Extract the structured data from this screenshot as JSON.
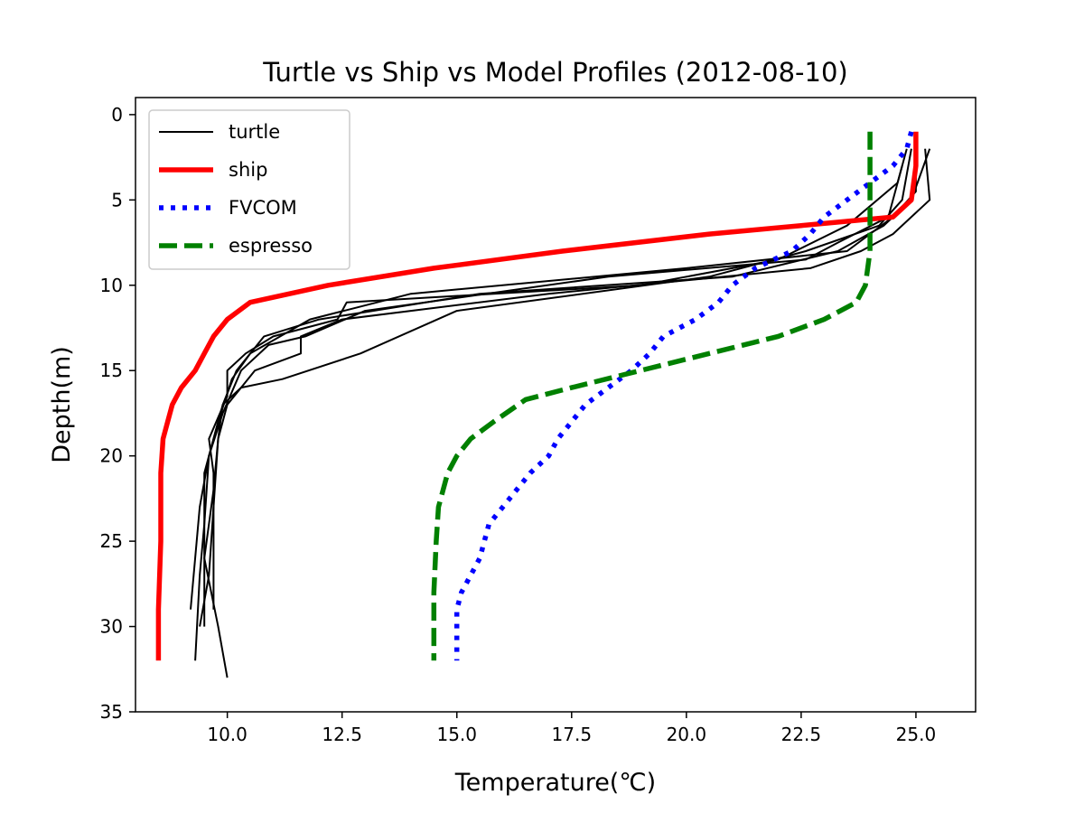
{
  "chart_data": {
    "type": "line",
    "title": "Turtle vs Ship vs Model Profiles (2012-08-10)",
    "xlabel": "Temperature(℃)",
    "ylabel": "Depth(m)",
    "xlim": [
      8.0,
      26.3
    ],
    "ylim": [
      35,
      -1
    ],
    "y_inverted": true,
    "grid": false,
    "legend_position": "upper left",
    "xticks": [
      10.0,
      12.5,
      15.0,
      17.5,
      20.0,
      22.5,
      25.0
    ],
    "xtick_labels": [
      "10.0",
      "12.5",
      "15.0",
      "17.5",
      "20.0",
      "22.5",
      "25.0"
    ],
    "yticks": [
      0,
      5,
      10,
      15,
      20,
      25,
      30,
      35
    ],
    "ytick_labels": [
      "0",
      "5",
      "10",
      "15",
      "20",
      "25",
      "30",
      "35"
    ],
    "legend": [
      {
        "label": "turtle",
        "color": "#000000",
        "style": "solid-thin"
      },
      {
        "label": "ship",
        "color": "#ff0000",
        "style": "solid-thick"
      },
      {
        "label": "FVCOM",
        "color": "#0000ff",
        "style": "dotted"
      },
      {
        "label": "espresso",
        "color": "#008000",
        "style": "dashed"
      }
    ],
    "series": [
      {
        "name": "turtle",
        "color": "#000000",
        "points": [
          [
            24.8,
            2
          ],
          [
            24.6,
            4
          ],
          [
            23.5,
            6.5
          ],
          [
            22,
            8.5
          ],
          [
            19,
            10
          ],
          [
            12.6,
            11
          ],
          [
            12.4,
            12
          ],
          [
            11,
            13
          ],
          [
            10.4,
            14
          ],
          [
            10,
            15
          ],
          [
            10,
            16.5
          ],
          [
            9.6,
            19
          ],
          [
            9.7,
            21
          ],
          [
            9.7,
            25
          ],
          [
            9.7,
            29
          ]
        ]
      },
      {
        "name": "turtle",
        "color": "#000000",
        "points": [
          [
            25.3,
            2
          ],
          [
            24.9,
            5
          ],
          [
            24.3,
            6.5
          ],
          [
            23.3,
            8
          ],
          [
            21,
            9.5
          ],
          [
            15.5,
            10.5
          ],
          [
            12,
            12
          ],
          [
            10.8,
            13
          ],
          [
            10.2,
            15
          ],
          [
            9.9,
            17
          ],
          [
            9.6,
            20
          ],
          [
            9.5,
            24
          ],
          [
            9.4,
            27
          ],
          [
            9.3,
            32
          ]
        ]
      },
      {
        "name": "turtle",
        "color": "#000000",
        "points": [
          [
            25.0,
            3
          ],
          [
            25.0,
            4.5
          ],
          [
            24.5,
            6
          ],
          [
            23.5,
            8
          ],
          [
            20,
            9
          ],
          [
            14,
            10.5
          ],
          [
            11.8,
            12
          ],
          [
            10.5,
            14
          ],
          [
            10.1,
            15.5
          ],
          [
            9.8,
            18
          ],
          [
            9.5,
            21
          ],
          [
            9.5,
            26
          ],
          [
            9.8,
            30
          ],
          [
            10.0,
            33
          ]
        ]
      },
      {
        "name": "turtle",
        "color": "#000000",
        "points": [
          [
            25.2,
            2
          ],
          [
            25.3,
            5
          ],
          [
            24.5,
            7
          ],
          [
            23.8,
            8
          ],
          [
            22.7,
            9
          ],
          [
            17,
            10.5
          ],
          [
            12.5,
            12
          ],
          [
            11.6,
            13
          ],
          [
            11.6,
            14
          ],
          [
            10.6,
            15
          ],
          [
            10.3,
            16
          ],
          [
            10.0,
            17
          ],
          [
            9.8,
            19
          ],
          [
            9.7,
            23
          ],
          [
            9.6,
            27
          ],
          [
            9.4,
            30
          ]
        ]
      },
      {
        "name": "turtle",
        "color": "#000000",
        "points": [
          [
            24.7,
            3
          ],
          [
            24.4,
            6
          ],
          [
            23.3,
            7.5
          ],
          [
            22.6,
            8.5
          ],
          [
            18.3,
            9.5
          ],
          [
            13,
            11.5
          ],
          [
            11.7,
            13
          ],
          [
            10.9,
            13.5
          ],
          [
            10.3,
            15
          ],
          [
            9.9,
            17.5
          ],
          [
            9.6,
            20
          ],
          [
            9.4,
            23
          ],
          [
            9.2,
            29
          ]
        ]
      },
      {
        "name": "turtle",
        "color": "#000000",
        "points": [
          [
            24.9,
            2
          ],
          [
            24.7,
            5
          ],
          [
            24.2,
            6.5
          ],
          [
            22.6,
            8
          ],
          [
            20.5,
            9.5
          ],
          [
            15,
            11.5
          ],
          [
            12.9,
            14
          ],
          [
            11.2,
            15.5
          ],
          [
            10.3,
            16
          ],
          [
            9.9,
            17
          ],
          [
            9.8,
            19
          ],
          [
            9.7,
            22
          ],
          [
            9.5,
            26
          ],
          [
            9.5,
            30
          ]
        ]
      },
      {
        "name": "ship",
        "color": "#ff0000",
        "points": [
          [
            25.0,
            1
          ],
          [
            25.0,
            3
          ],
          [
            24.9,
            5
          ],
          [
            24.5,
            6
          ],
          [
            22.5,
            6.5
          ],
          [
            20.5,
            7
          ],
          [
            17.3,
            8
          ],
          [
            14.5,
            9
          ],
          [
            12.2,
            10
          ],
          [
            10.5,
            11
          ],
          [
            10.0,
            12
          ],
          [
            9.7,
            13
          ],
          [
            9.5,
            14
          ],
          [
            9.3,
            15
          ],
          [
            9.0,
            16
          ],
          [
            8.8,
            17
          ],
          [
            8.7,
            18
          ],
          [
            8.6,
            19
          ],
          [
            8.55,
            21
          ],
          [
            8.55,
            25
          ],
          [
            8.5,
            29
          ],
          [
            8.5,
            32
          ]
        ]
      },
      {
        "name": "FVCOM",
        "color": "#0000ff",
        "points": [
          [
            24.9,
            1
          ],
          [
            24.8,
            2
          ],
          [
            24.5,
            3
          ],
          [
            24.0,
            4
          ],
          [
            23.5,
            5
          ],
          [
            23.0,
            6
          ],
          [
            22.7,
            7
          ],
          [
            22.3,
            8
          ],
          [
            21.5,
            9
          ],
          [
            21.0,
            10
          ],
          [
            20.7,
            11
          ],
          [
            20.2,
            12
          ],
          [
            19.5,
            13
          ],
          [
            19.2,
            14
          ],
          [
            18.8,
            15
          ],
          [
            18.3,
            16
          ],
          [
            17.8,
            17
          ],
          [
            17.5,
            18
          ],
          [
            17.2,
            19
          ],
          [
            17.0,
            20
          ],
          [
            16.6,
            21
          ],
          [
            16.3,
            22
          ],
          [
            16.0,
            23
          ],
          [
            15.7,
            24
          ],
          [
            15.6,
            25
          ],
          [
            15.5,
            26
          ],
          [
            15.3,
            27
          ],
          [
            15.1,
            28
          ],
          [
            15.0,
            29
          ],
          [
            15.0,
            30
          ],
          [
            15.0,
            32
          ]
        ]
      },
      {
        "name": "espresso",
        "color": "#008000",
        "points": [
          [
            24.0,
            1
          ],
          [
            24.0,
            4
          ],
          [
            24.0,
            6
          ],
          [
            24.0,
            8
          ],
          [
            23.9,
            10
          ],
          [
            23.7,
            11
          ],
          [
            23.0,
            12
          ],
          [
            22.0,
            13
          ],
          [
            20.5,
            14
          ],
          [
            19.0,
            15
          ],
          [
            17.5,
            16
          ],
          [
            16.5,
            16.7
          ],
          [
            15.8,
            18
          ],
          [
            15.3,
            19
          ],
          [
            15.0,
            20
          ],
          [
            14.8,
            21
          ],
          [
            14.6,
            23
          ],
          [
            14.55,
            25
          ],
          [
            14.5,
            28
          ],
          [
            14.5,
            32
          ]
        ]
      }
    ]
  }
}
